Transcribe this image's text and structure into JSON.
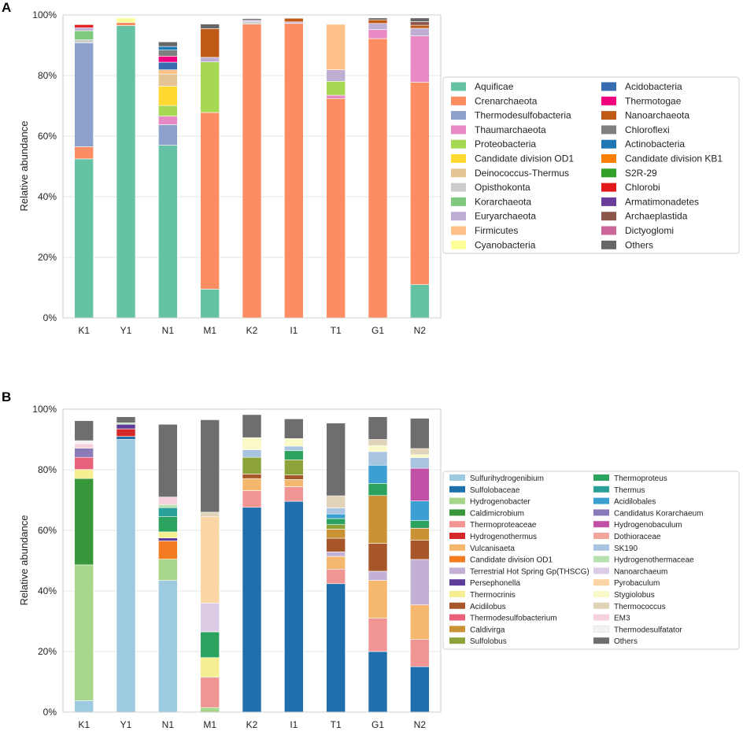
{
  "chart_data": [
    {
      "panel": "A",
      "type": "bar",
      "stacked": true,
      "ylabel": "Relative abundance",
      "ylim": [
        0,
        100
      ],
      "yticks": [
        "0%",
        "20%",
        "40%",
        "60%",
        "80%",
        "100%"
      ],
      "categories": [
        "K1",
        "Y1",
        "N1",
        "M1",
        "K2",
        "I1",
        "T1",
        "G1",
        "N2"
      ],
      "grid": true,
      "legend_position": "right",
      "series": [
        {
          "name": "Aquificae",
          "color": "#66c2a5",
          "values": [
            52.5,
            96.5,
            57.0,
            9.5,
            0,
            0,
            0,
            0,
            11.0
          ]
        },
        {
          "name": "Crenarchaeota",
          "color": "#fc8d62",
          "values": [
            4.0,
            1.0,
            0,
            58.3,
            97.0,
            97.2,
            72.4,
            92.2,
            66.8
          ]
        },
        {
          "name": "Thermodesulfobacteria",
          "color": "#8da0cb",
          "values": [
            34.3,
            0,
            6.8,
            0,
            0,
            0,
            0,
            0,
            0
          ]
        },
        {
          "name": "Thaumarchaeota",
          "color": "#e78ac3",
          "values": [
            0,
            0,
            2.8,
            0,
            0,
            0,
            1.1,
            3.0,
            15.3
          ]
        },
        {
          "name": "Proteobacteria",
          "color": "#a6d854",
          "values": [
            0,
            0,
            3.5,
            16.7,
            0,
            0,
            4.6,
            0,
            0
          ]
        },
        {
          "name": "Candidate division OD1",
          "color": "#ffd92f",
          "values": [
            0,
            0,
            6.4,
            0,
            0,
            0,
            0,
            0,
            0
          ]
        },
        {
          "name": "Deinococcus-Thermus",
          "color": "#e5c494",
          "values": [
            0,
            0,
            4.0,
            0,
            0,
            0,
            0,
            0,
            0
          ]
        },
        {
          "name": "Opisthokonta",
          "color": "#cccccc",
          "values": [
            1.0,
            0,
            0,
            0,
            0.8,
            0,
            0,
            0,
            0
          ]
        },
        {
          "name": "Korarchaeota",
          "color": "#7fc97f",
          "values": [
            3.0,
            0,
            0,
            0,
            0,
            0,
            0,
            0,
            0
          ]
        },
        {
          "name": "Euryarchaeota",
          "color": "#beaed4",
          "values": [
            1.0,
            0,
            0,
            1.5,
            0.5,
            0.5,
            3.8,
            2.0,
            2.5
          ]
        },
        {
          "name": "Firmicutes",
          "color": "#fdc086",
          "values": [
            0,
            0,
            1.4,
            0,
            0,
            0,
            15.0,
            0,
            0
          ]
        },
        {
          "name": "Cyanobacteria",
          "color": "#ffff99",
          "values": [
            0,
            1.5,
            0,
            0,
            0,
            0,
            0,
            0,
            0
          ]
        },
        {
          "name": "Acidobacteria",
          "color": "#386cb0",
          "values": [
            0,
            0,
            2.5,
            0,
            0,
            0,
            0,
            0,
            0
          ]
        },
        {
          "name": "Thermotogae",
          "color": "#f0027f",
          "values": [
            0,
            0,
            2.0,
            0,
            0,
            0,
            0,
            0,
            0
          ]
        },
        {
          "name": "Nanoarchaeota",
          "color": "#bf5b17",
          "values": [
            0,
            0,
            0,
            9.5,
            0,
            1.2,
            0,
            1.2,
            1.0
          ]
        },
        {
          "name": "Chloroflexi",
          "color": "#7f7f7f",
          "values": [
            0,
            0,
            2.0,
            0,
            0,
            0,
            0,
            0,
            0
          ]
        },
        {
          "name": "Actinobacteria",
          "color": "#1f78b4",
          "values": [
            0,
            0,
            1.2,
            0,
            0,
            0,
            0,
            0,
            0
          ]
        },
        {
          "name": "Candidate division KB1",
          "color": "#ff7f00",
          "values": [
            0,
            0,
            0,
            0,
            0,
            0,
            0,
            0,
            0
          ]
        },
        {
          "name": "S2R-29",
          "color": "#33a02c",
          "values": [
            0,
            0,
            0,
            0,
            0,
            0,
            0,
            0,
            0
          ]
        },
        {
          "name": "Chlorobi",
          "color": "#e31a1c",
          "values": [
            1.0,
            0,
            0,
            0,
            0,
            0,
            0,
            0,
            0
          ]
        },
        {
          "name": "Armatimonadetes",
          "color": "#6a3d9a",
          "values": [
            0,
            0,
            0,
            0,
            0,
            0,
            0,
            0,
            0
          ]
        },
        {
          "name": "Archaeplastida",
          "color": "#8c564b",
          "values": [
            0,
            0,
            0,
            0,
            0,
            0,
            0,
            0,
            1.2
          ]
        },
        {
          "name": "Dictyoglomi",
          "color": "#cc6699",
          "values": [
            0,
            0,
            0,
            0,
            0,
            0,
            0,
            0,
            0
          ]
        },
        {
          "name": "Others",
          "color": "#666666",
          "values": [
            0,
            0,
            1.5,
            1.5,
            0.5,
            0,
            0,
            0.6,
            1.2
          ]
        }
      ]
    },
    {
      "panel": "B",
      "type": "bar",
      "stacked": true,
      "ylabel": "Relative abundance",
      "ylim": [
        0,
        100
      ],
      "yticks": [
        "0%",
        "20%",
        "40%",
        "60%",
        "80%",
        "100%"
      ],
      "categories": [
        "K1",
        "Y1",
        "N1",
        "M1",
        "K2",
        "I1",
        "T1",
        "G1",
        "N2"
      ],
      "grid": true,
      "legend_position": "right",
      "series": [
        {
          "name": "Sulfurihydrogenibium",
          "color": "#9ecae1",
          "values": [
            3.8,
            90.0,
            43.5,
            0,
            0,
            0,
            0,
            0,
            0
          ]
        },
        {
          "name": "Sulfolobaceae",
          "color": "#1f6fad",
          "values": [
            0,
            1.0,
            0,
            0,
            67.6,
            69.6,
            42.4,
            20.0,
            15.0
          ]
        },
        {
          "name": "Hydrogenobacter",
          "color": "#a6d68a",
          "values": [
            44.8,
            0,
            7.0,
            1.5,
            0,
            0,
            0,
            0,
            0
          ]
        },
        {
          "name": "Caldimicrobium",
          "color": "#38963b",
          "values": [
            28.5,
            0,
            0,
            0,
            0,
            0,
            0,
            0,
            0
          ]
        },
        {
          "name": "Thermoproteaceae",
          "color": "#f09494",
          "values": [
            0,
            0,
            0,
            10.0,
            5.5,
            4.8,
            4.8,
            11.0,
            9.0
          ]
        },
        {
          "name": "Hydrogenothermus",
          "color": "#d62728",
          "values": [
            0,
            2.5,
            0,
            0,
            0,
            0,
            0,
            0,
            0
          ]
        },
        {
          "name": "Vulcanisaeta",
          "color": "#f5b66e",
          "values": [
            0,
            0,
            0,
            0,
            4.0,
            2.4,
            4.2,
            12.5,
            11.4
          ]
        },
        {
          "name": "Candidate division OD1",
          "color": "#f47c20",
          "values": [
            0,
            0,
            6.0,
            0,
            0,
            0,
            0,
            0,
            0
          ]
        },
        {
          "name": "Terrestrial Hot Spring Gp(THSCG)",
          "color": "#c5b0d5",
          "values": [
            0,
            0,
            0,
            0,
            0,
            0,
            1.5,
            3.0,
            15.0
          ]
        },
        {
          "name": "Persephonella",
          "color": "#5e3c99",
          "values": [
            0,
            1.5,
            1.0,
            0,
            0,
            0,
            0,
            0,
            0
          ]
        },
        {
          "name": "Thermocrinis",
          "color": "#f5ef91",
          "values": [
            3.0,
            0,
            2.0,
            6.5,
            0,
            0,
            0,
            0,
            0
          ]
        },
        {
          "name": "Acidilobus",
          "color": "#a65628",
          "values": [
            0,
            0,
            0,
            0,
            1.5,
            1.5,
            4.5,
            9.2,
            6.3
          ]
        },
        {
          "name": "Thermodesulfobacterium",
          "color": "#e8607a",
          "values": [
            4.0,
            0,
            0,
            0,
            0,
            0,
            0,
            0,
            0
          ]
        },
        {
          "name": "Caldivirga",
          "color": "#c99235",
          "values": [
            0,
            0,
            0,
            0,
            0,
            0,
            3.0,
            15.8,
            4.0
          ]
        },
        {
          "name": "Sulfolobus",
          "color": "#8ca33a",
          "values": [
            0,
            0,
            0,
            0,
            5.5,
            5.0,
            1.5,
            0,
            0
          ]
        },
        {
          "name": "Thermoproteus",
          "color": "#2ca25f",
          "values": [
            0,
            0,
            5.0,
            8.5,
            0,
            3.0,
            2.0,
            4.0,
            2.5
          ]
        },
        {
          "name": "Thermus",
          "color": "#2aa198",
          "values": [
            0,
            0,
            3.0,
            0,
            0,
            0,
            0,
            0,
            0
          ]
        },
        {
          "name": "Acidilobales",
          "color": "#3b9fd1",
          "values": [
            0,
            0,
            0,
            0,
            0,
            0,
            1.5,
            6.0,
            6.5
          ]
        },
        {
          "name": "Candidatus Korarchaeum",
          "color": "#8b7ab8",
          "values": [
            3.0,
            0,
            0,
            0,
            0,
            0,
            0,
            0,
            0
          ]
        },
        {
          "name": "Hydrogenobaculum",
          "color": "#c051a6",
          "values": [
            0,
            0,
            0,
            0,
            0,
            0,
            0,
            0,
            10.8
          ]
        },
        {
          "name": "Dothioraceae",
          "color": "#f2a59b",
          "values": [
            0,
            0,
            0,
            0,
            0,
            0,
            0,
            0,
            0
          ]
        },
        {
          "name": "SK190",
          "color": "#a9c4e0",
          "values": [
            0,
            0,
            0,
            0,
            2.5,
            1.5,
            2.0,
            4.5,
            3.5
          ]
        },
        {
          "name": "Hydrogenothermaceae",
          "color": "#b8e0b0",
          "values": [
            0,
            0.5,
            1.0,
            0,
            0,
            0,
            0,
            0,
            0
          ]
        },
        {
          "name": "Nanoarchaeum",
          "color": "#dccbe5",
          "values": [
            0,
            0,
            0,
            9.5,
            0,
            0,
            0,
            0,
            0
          ]
        },
        {
          "name": "Pyrobaculum",
          "color": "#fbd5a3",
          "values": [
            0,
            0,
            0,
            28.5,
            0,
            0,
            0,
            0,
            0
          ]
        },
        {
          "name": "Stygiolobus",
          "color": "#fafac8",
          "values": [
            0,
            0,
            0,
            0,
            4.0,
            2.5,
            0,
            2.0,
            1.0
          ]
        },
        {
          "name": "Thermococcus",
          "color": "#e0d3b8",
          "values": [
            0,
            0,
            0,
            1.5,
            0,
            0,
            4.0,
            2.0,
            2.0
          ]
        },
        {
          "name": "EM3",
          "color": "#f7d2dc",
          "values": [
            1.5,
            0,
            2.5,
            0,
            0,
            0,
            0,
            0,
            0
          ]
        },
        {
          "name": "Thermodesulfatator",
          "color": "#f3f3f3",
          "values": [
            1.0,
            0,
            0,
            0,
            0,
            0,
            0,
            0,
            0
          ]
        },
        {
          "name": "Others",
          "color": "#6e6e6e",
          "values": [
            6.6,
            2.0,
            24.0,
            30.5,
            7.6,
            6.5,
            24.0,
            7.5,
            10.0
          ]
        }
      ]
    }
  ]
}
